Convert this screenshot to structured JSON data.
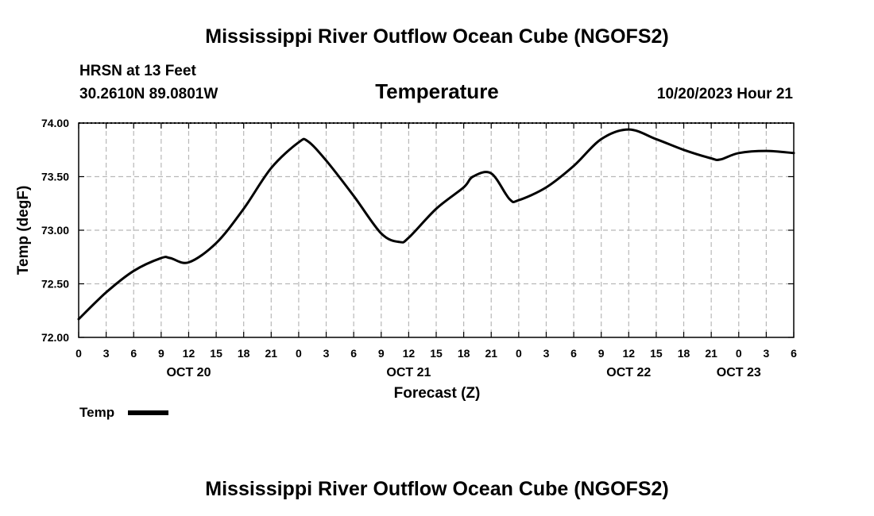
{
  "title": "Mississippi River Outflow Ocean Cube (NGOFS2)",
  "footer_title": "Mississippi River Outflow Ocean Cube (NGOFS2)",
  "station": "HRSN at 13 Feet",
  "coords": "30.2610N  89.0801W",
  "datetime": "10/20/2023 Hour 21",
  "chart_data": {
    "type": "line",
    "title": "Temperature",
    "xlabel": "Forecast (Z)",
    "ylabel": "Temp (degF)",
    "ylim": [
      72.0,
      74.0
    ],
    "xlim": [
      0,
      78
    ],
    "y_ticks": [
      "72.00",
      "72.50",
      "73.00",
      "73.50",
      "74.00"
    ],
    "x_tick_labels": [
      "0",
      "3",
      "6",
      "9",
      "12",
      "15",
      "18",
      "21",
      "0",
      "3",
      "6",
      "9",
      "12",
      "15",
      "18",
      "21",
      "0",
      "3",
      "6",
      "9",
      "12",
      "15",
      "18",
      "21",
      "0",
      "3",
      "6"
    ],
    "day_labels": [
      {
        "label": "OCT 20",
        "hour": 12
      },
      {
        "label": "OCT 21",
        "hour": 36
      },
      {
        "label": "OCT 22",
        "hour": 60
      },
      {
        "label": "OCT 23",
        "hour": 72
      }
    ],
    "grid": true,
    "legend": "bottom-left",
    "series": [
      {
        "name": "Temp",
        "x": [
          0,
          3,
          6,
          9,
          10,
          12,
          15,
          18,
          21,
          24,
          25,
          27,
          30,
          33,
          35,
          36,
          39,
          42,
          43,
          45,
          47,
          48,
          51,
          54,
          57,
          60,
          63,
          66,
          69,
          70,
          72,
          75,
          78
        ],
        "values": [
          72.17,
          72.42,
          72.62,
          72.74,
          72.74,
          72.7,
          72.88,
          73.2,
          73.58,
          73.82,
          73.83,
          73.65,
          73.32,
          72.97,
          72.89,
          72.93,
          73.2,
          73.4,
          73.5,
          73.53,
          73.29,
          73.28,
          73.4,
          73.6,
          73.85,
          73.94,
          73.85,
          73.75,
          73.67,
          73.66,
          73.72,
          73.74,
          73.72
        ]
      }
    ]
  }
}
